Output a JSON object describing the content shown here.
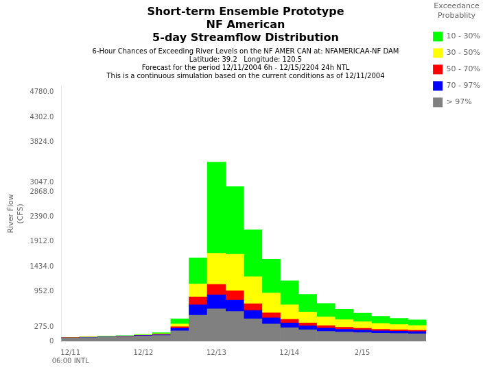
{
  "chart_data": {
    "type": "bar",
    "stacked": true,
    "title": [
      "Short-term Ensemble Prototype",
      "NF American",
      "5-day Streamflow Distribution"
    ],
    "subtitle": [
      "6-Hour Chances of Exceeding River Levels on the NF AMER CAN at: NFAMERICAA-NF DAM",
      "Latitude: 39.2   Longitude: 120.5",
      "Forecast for the period 12/11/2004 6h - 12/15/2204 24h NTL",
      "This is a continuous simulation based on the current conditions as of 12/11/2004"
    ],
    "ylabel": "River Flow\n(CFS)",
    "categories": [
      "12/11\n06:00 INTL",
      null,
      null,
      null,
      "12/12",
      null,
      null,
      null,
      "12/13",
      null,
      null,
      null,
      "12/14",
      null,
      null,
      null,
      "2/15",
      null,
      null,
      null
    ],
    "series": [
      {
        "name": "> 97%",
        "color": "#808080",
        "values": [
          60,
          70,
          80,
          90,
          100,
          110,
          200,
          500,
          620,
          570,
          430,
          330,
          260,
          220,
          190,
          175,
          165,
          155,
          150,
          145
        ]
      },
      {
        "name": "70 - 97%",
        "color": "#0000ff",
        "values": [
          5,
          5,
          5,
          5,
          10,
          15,
          50,
          200,
          270,
          220,
          160,
          120,
          90,
          75,
          62,
          55,
          50,
          45,
          42,
          40
        ]
      },
      {
        "name": "50 - 70%",
        "color": "#ff0000",
        "values": [
          3,
          3,
          3,
          3,
          5,
          8,
          30,
          150,
          200,
          180,
          130,
          95,
          70,
          55,
          45,
          38,
          33,
          30,
          28,
          26
        ]
      },
      {
        "name": "30 - 50%",
        "color": "#ffff00",
        "values": [
          3,
          3,
          3,
          3,
          5,
          10,
          50,
          250,
          600,
          700,
          520,
          380,
          280,
          210,
          170,
          145,
          125,
          110,
          100,
          90
        ]
      },
      {
        "name": "10 - 30%",
        "color": "#00ff00",
        "values": [
          5,
          5,
          5,
          5,
          10,
          20,
          100,
          500,
          1750,
          1300,
          900,
          650,
          460,
          340,
          260,
          200,
          165,
          140,
          120,
          110
        ]
      }
    ],
    "ylim": [
      0,
      4900
    ],
    "yticks": [
      0,
      {
        "value": 275,
        "label": "275.0"
      },
      {
        "value": 952,
        "label": "952.0"
      },
      {
        "value": 1434,
        "label": "1434.0"
      },
      {
        "value": 1912,
        "label": "1912.0"
      },
      {
        "value": 2390,
        "label": "2390.0"
      },
      {
        "value": 2868,
        "label": "2868.0"
      },
      {
        "value": 3047,
        "label": "3047.0"
      },
      {
        "value": 3824,
        "label": "3824.0"
      },
      {
        "value": 4302,
        "label": "4302.0"
      },
      {
        "value": 4780,
        "label": "4780.0"
      }
    ],
    "grid": false,
    "legend": "right",
    "legend_title": "Exceedance\nProbablity"
  }
}
